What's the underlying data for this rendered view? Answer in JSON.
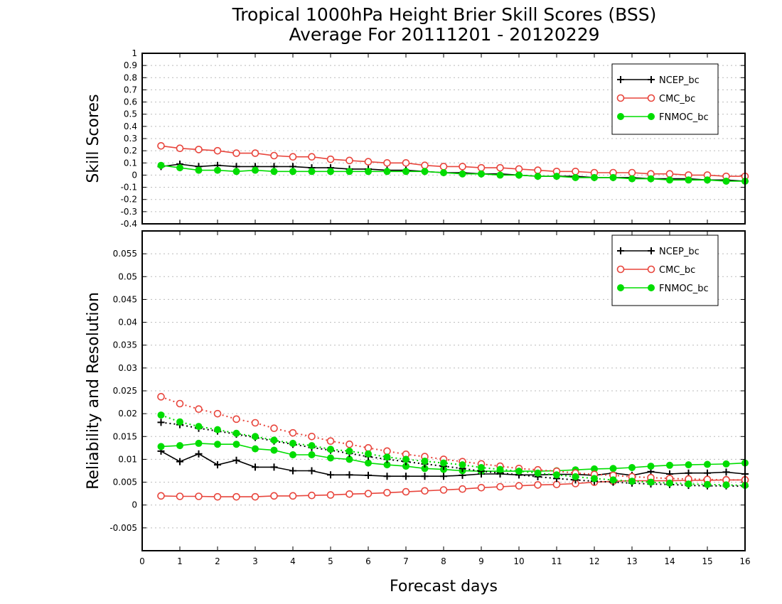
{
  "title_line1": "Tropical 1000hPa Height Brier Skill Scores (BSS)",
  "title_line2": "Average For 20111201 - 20120229",
  "colors": {
    "ncep": "#000000",
    "cmc": "#e8453c",
    "fnmoc": "#00dd00"
  },
  "chart_data": [
    {
      "type": "line",
      "panel": "top",
      "ylabel": "Skill Scores",
      "ylim": [
        -0.4,
        1
      ],
      "ytick_labels": [
        "-0.4",
        "-0.3",
        "-0.2",
        "-0.1",
        "0",
        "0.1",
        "0.2",
        "0.3",
        "0.4",
        "0.5",
        "0.6",
        "0.7",
        "0.8",
        "0.9",
        "1"
      ],
      "grid": true,
      "legend": {
        "position": "top-right",
        "entries": [
          "NCEP_bc",
          "CMC_bc",
          "FNMOC_bc"
        ]
      },
      "x": [
        0.5,
        1,
        1.5,
        2,
        2.5,
        3,
        3.5,
        4,
        4.5,
        5,
        5.5,
        6,
        6.5,
        7,
        7.5,
        8,
        8.5,
        9,
        9.5,
        10,
        10.5,
        11,
        11.5,
        12,
        12.5,
        13,
        13.5,
        14,
        14.5,
        15,
        15.5,
        16
      ],
      "series": [
        {
          "name": "NCEP_bc",
          "color_key": "ncep",
          "marker": "plus",
          "values": [
            0.07,
            0.09,
            0.07,
            0.08,
            0.07,
            0.07,
            0.07,
            0.07,
            0.06,
            0.06,
            0.05,
            0.05,
            0.04,
            0.04,
            0.03,
            0.02,
            0.02,
            0.01,
            0.01,
            0.0,
            -0.01,
            -0.01,
            -0.01,
            -0.02,
            -0.02,
            -0.02,
            -0.03,
            -0.03,
            -0.03,
            -0.04,
            -0.04,
            -0.05
          ]
        },
        {
          "name": "CMC_bc",
          "color_key": "cmc",
          "marker": "circle-open",
          "values": [
            0.24,
            0.22,
            0.21,
            0.2,
            0.18,
            0.18,
            0.16,
            0.15,
            0.15,
            0.13,
            0.12,
            0.11,
            0.1,
            0.1,
            0.08,
            0.07,
            0.07,
            0.06,
            0.06,
            0.05,
            0.04,
            0.03,
            0.03,
            0.02,
            0.02,
            0.02,
            0.01,
            0.01,
            0.0,
            0.0,
            -0.01,
            -0.01
          ]
        },
        {
          "name": "FNMOC_bc",
          "color_key": "fnmoc",
          "marker": "circle-filled",
          "values": [
            0.08,
            0.06,
            0.04,
            0.04,
            0.03,
            0.04,
            0.03,
            0.03,
            0.03,
            0.03,
            0.03,
            0.03,
            0.03,
            0.03,
            0.03,
            0.02,
            0.01,
            0.01,
            0.0,
            0.0,
            -0.01,
            -0.01,
            -0.02,
            -0.02,
            -0.02,
            -0.03,
            -0.03,
            -0.04,
            -0.04,
            -0.04,
            -0.05,
            -0.05
          ]
        }
      ]
    },
    {
      "type": "line",
      "panel": "bottom",
      "xlabel": "Forecast days",
      "ylabel": "Reliability and Resolution",
      "ylim": [
        -0.01,
        0.06
      ],
      "ytick_labels": [
        "-0.005",
        "0",
        "0.005",
        "0.01",
        "0.015",
        "0.02",
        "0.025",
        "0.03",
        "0.035",
        "0.04",
        "0.045",
        "0.05",
        "0.055"
      ],
      "xlim": [
        0,
        16
      ],
      "xtick_labels": [
        "0",
        "1",
        "2",
        "3",
        "4",
        "5",
        "6",
        "7",
        "8",
        "9",
        "10",
        "11",
        "12",
        "13",
        "14",
        "15",
        "16"
      ],
      "grid": true,
      "legend": {
        "position": "top-right",
        "entries": [
          "NCEP_bc",
          "CMC_bc",
          "FNMOC_bc"
        ]
      },
      "x": [
        0.5,
        1,
        1.5,
        2,
        2.5,
        3,
        3.5,
        4,
        4.5,
        5,
        5.5,
        6,
        6.5,
        7,
        7.5,
        8,
        8.5,
        9,
        9.5,
        10,
        10.5,
        11,
        11.5,
        12,
        12.5,
        13,
        13.5,
        14,
        14.5,
        15,
        15.5,
        16
      ],
      "series": [
        {
          "name": "NCEP_bc",
          "color_key": "ncep",
          "marker": "plus",
          "linestyle": "solid",
          "values": [
            0.0118,
            0.0095,
            0.0112,
            0.0088,
            0.0098,
            0.0083,
            0.0083,
            0.0075,
            0.0075,
            0.0066,
            0.0066,
            0.0065,
            0.0063,
            0.0063,
            0.0063,
            0.0063,
            0.0065,
            0.0068,
            0.0068,
            0.0066,
            0.0066,
            0.0067,
            0.0067,
            0.0065,
            0.007,
            0.0065,
            0.0073,
            0.0068,
            0.007,
            0.007,
            0.0072,
            0.0068
          ]
        },
        {
          "name": "CMC_bc",
          "color_key": "cmc",
          "marker": "circle-open",
          "linestyle": "solid",
          "values": [
            0.002,
            0.0019,
            0.0019,
            0.0018,
            0.0018,
            0.0018,
            0.002,
            0.002,
            0.0021,
            0.0022,
            0.0024,
            0.0025,
            0.0027,
            0.0029,
            0.0031,
            0.0033,
            0.0035,
            0.0038,
            0.004,
            0.0042,
            0.0044,
            0.0045,
            0.0047,
            0.005,
            0.0052,
            0.0053,
            0.0053,
            0.0053,
            0.0054,
            0.0054,
            0.0055,
            0.0055
          ]
        },
        {
          "name": "FNMOC_bc",
          "color_key": "fnmoc",
          "marker": "circle-filled",
          "linestyle": "solid",
          "values": [
            0.0128,
            0.013,
            0.0135,
            0.0133,
            0.0133,
            0.0123,
            0.012,
            0.011,
            0.011,
            0.0103,
            0.01,
            0.0092,
            0.0088,
            0.0085,
            0.008,
            0.0078,
            0.0075,
            0.0074,
            0.0074,
            0.0074,
            0.0074,
            0.0075,
            0.0077,
            0.0079,
            0.008,
            0.0082,
            0.0085,
            0.0087,
            0.0088,
            0.0089,
            0.009,
            0.0092
          ]
        },
        {
          "name": "NCEP_bc",
          "color_key": "ncep",
          "marker": "plus",
          "linestyle": "dotted",
          "values": [
            0.0181,
            0.0176,
            0.0168,
            0.0162,
            0.0155,
            0.0148,
            0.014,
            0.0133,
            0.0126,
            0.012,
            0.0113,
            0.0106,
            0.01,
            0.0095,
            0.009,
            0.0085,
            0.008,
            0.0074,
            0.007,
            0.0066,
            0.0062,
            0.0058,
            0.0055,
            0.0052,
            0.005,
            0.0048,
            0.0046,
            0.0045,
            0.0043,
            0.0042,
            0.0042,
            0.0041
          ]
        },
        {
          "name": "CMC_bc",
          "color_key": "cmc",
          "marker": "circle-open",
          "linestyle": "dotted",
          "values": [
            0.0237,
            0.0222,
            0.021,
            0.02,
            0.0188,
            0.018,
            0.0168,
            0.0158,
            0.015,
            0.014,
            0.0133,
            0.0125,
            0.0118,
            0.0111,
            0.0106,
            0.01,
            0.0095,
            0.009,
            0.0085,
            0.008,
            0.0077,
            0.0074,
            0.007,
            0.0067,
            0.0065,
            0.0062,
            0.006,
            0.0058,
            0.0057,
            0.0056,
            0.0055,
            0.0055
          ]
        },
        {
          "name": "FNMOC_bc",
          "color_key": "fnmoc",
          "marker": "circle-filled",
          "linestyle": "dotted",
          "values": [
            0.0197,
            0.0182,
            0.0172,
            0.0165,
            0.0157,
            0.015,
            0.0142,
            0.0135,
            0.013,
            0.0122,
            0.0118,
            0.0112,
            0.0105,
            0.01,
            0.0096,
            0.0092,
            0.0088,
            0.0082,
            0.0078,
            0.0074,
            0.007,
            0.0066,
            0.0062,
            0.0058,
            0.0055,
            0.0052,
            0.005,
            0.0048,
            0.0046,
            0.0045,
            0.0044,
            0.0043
          ]
        }
      ]
    }
  ]
}
